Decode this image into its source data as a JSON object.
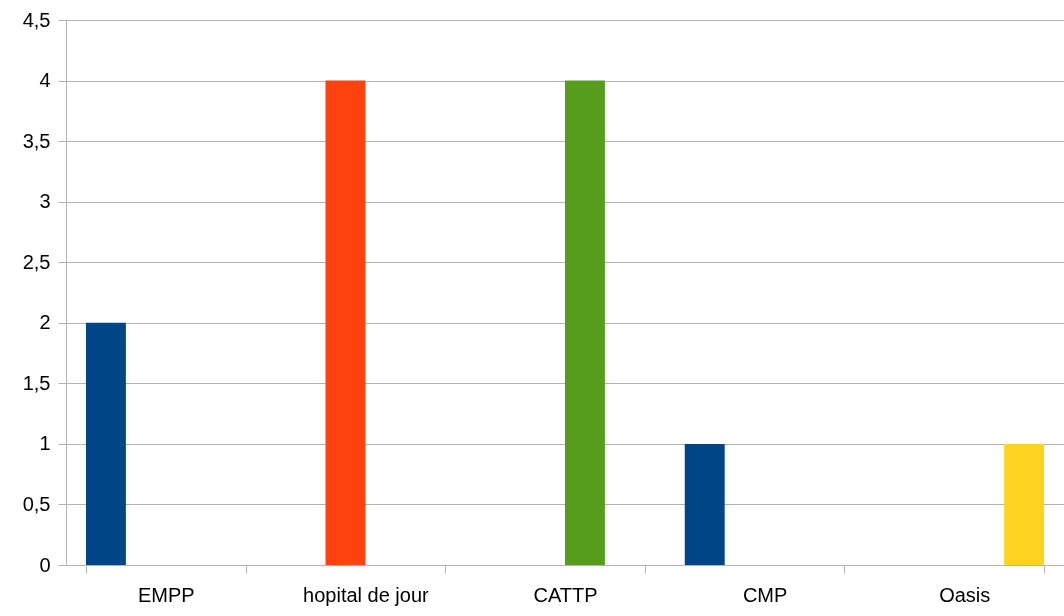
{
  "chart_data": {
    "type": "bar",
    "categories": [
      "EMPP",
      "hopital de jour",
      "CATTP",
      "CMP",
      "Oasis"
    ],
    "series": [
      {
        "color": "#004586",
        "values": [
          2,
          null,
          null,
          1,
          null
        ]
      },
      {
        "color": "#ff420e",
        "values": [
          null,
          4,
          null,
          null,
          null
        ]
      },
      {
        "color": "#579d1c",
        "values": [
          null,
          null,
          4,
          null,
          null
        ]
      },
      {
        "color": "#ffd320",
        "values": [
          null,
          null,
          null,
          null,
          1
        ]
      }
    ],
    "ylim": [
      0,
      4.5
    ],
    "yticks": [
      {
        "value": 0,
        "label": "0"
      },
      {
        "value": 0.5,
        "label": "0,5"
      },
      {
        "value": 1,
        "label": "1"
      },
      {
        "value": 1.5,
        "label": "1,5"
      },
      {
        "value": 2,
        "label": "2"
      },
      {
        "value": 2.5,
        "label": "2,5"
      },
      {
        "value": 3,
        "label": "3"
      },
      {
        "value": 3.5,
        "label": "3,5"
      },
      {
        "value": 4,
        "label": "4"
      },
      {
        "value": 4.5,
        "label": "4,5"
      }
    ],
    "grid": "y",
    "legend": false
  }
}
